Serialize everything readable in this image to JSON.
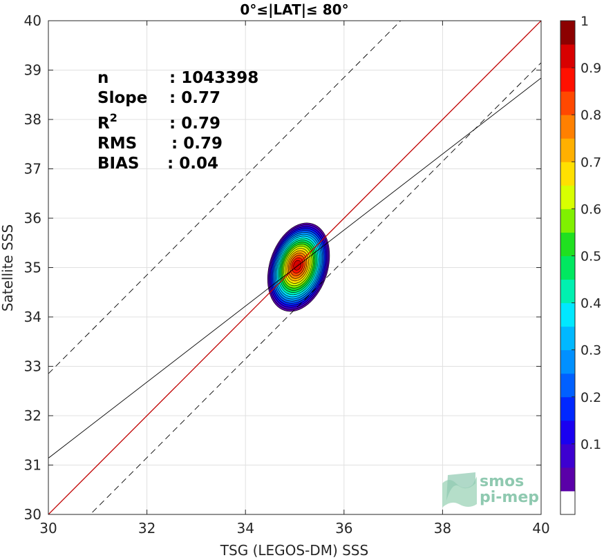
{
  "chart_data": {
    "type": "contour",
    "title": "0°≤|LAT|≤ 80°",
    "xlabel": "TSG (LEGOS-DM) SSS",
    "ylabel": "Satellite SSS",
    "xlim": [
      30,
      40
    ],
    "ylim": [
      30,
      40
    ],
    "xticks": [
      30,
      32,
      34,
      36,
      38,
      40
    ],
    "yticks": [
      30,
      31,
      32,
      33,
      34,
      35,
      36,
      37,
      38,
      39,
      40
    ],
    "grid": true,
    "stats": {
      "n_label": "n",
      "n_value": ": 1043398",
      "slope_label": "Slope",
      "slope_value": ": 0.77",
      "r2_label": "R",
      "r2_sup": "2",
      "r2_value": ": 0.79",
      "rms_label": "RMS",
      "rms_value": ": 0.79",
      "bias_label": "BIAS",
      "bias_value": ": 0.04"
    },
    "lines": {
      "identity": {
        "slope": 1,
        "intercept": 0,
        "color": "#c00000",
        "style": "solid"
      },
      "regression": {
        "slope": 0.77,
        "intercept": 8.04,
        "color": "#000000",
        "style": "solid"
      },
      "upper_bound": {
        "slope": 1,
        "intercept": 2.85,
        "color": "#000000",
        "style": "dashed"
      },
      "lower_bound": {
        "slope": 1,
        "intercept": -0.85,
        "color": "#000000",
        "style": "dashed"
      }
    },
    "density_peak": {
      "x": 35.05,
      "y": 35.05
    },
    "contour_levels": [
      0.05,
      0.1,
      0.15,
      0.2,
      0.25,
      0.3,
      0.35,
      0.4,
      0.45,
      0.5,
      0.55,
      0.6,
      0.65,
      0.7,
      0.75,
      0.8,
      0.85,
      0.9,
      0.95,
      1.0
    ],
    "colorbar": {
      "ticks": [
        "0.1",
        "0.2",
        "0.3",
        "0.4",
        "0.5",
        "0.6",
        "0.7",
        "0.8",
        "0.9",
        "1"
      ],
      "tick_values": [
        0.1,
        0.2,
        0.3,
        0.4,
        0.5,
        0.6,
        0.7,
        0.8,
        0.9,
        1.0
      ],
      "colors": [
        "#ffffff",
        "#5a00a8",
        "#3d00d0",
        "#1a00f0",
        "#0028ff",
        "#0060ff",
        "#0090ff",
        "#00b8ff",
        "#00e8ff",
        "#00f0b0",
        "#00e860",
        "#20e020",
        "#80f000",
        "#d8ff00",
        "#ffe000",
        "#ffb000",
        "#ff8000",
        "#ff4800",
        "#ff1000",
        "#d80000",
        "#8c0000"
      ]
    }
  },
  "logo": {
    "line1": "smos",
    "line2": "pi-mep"
  }
}
